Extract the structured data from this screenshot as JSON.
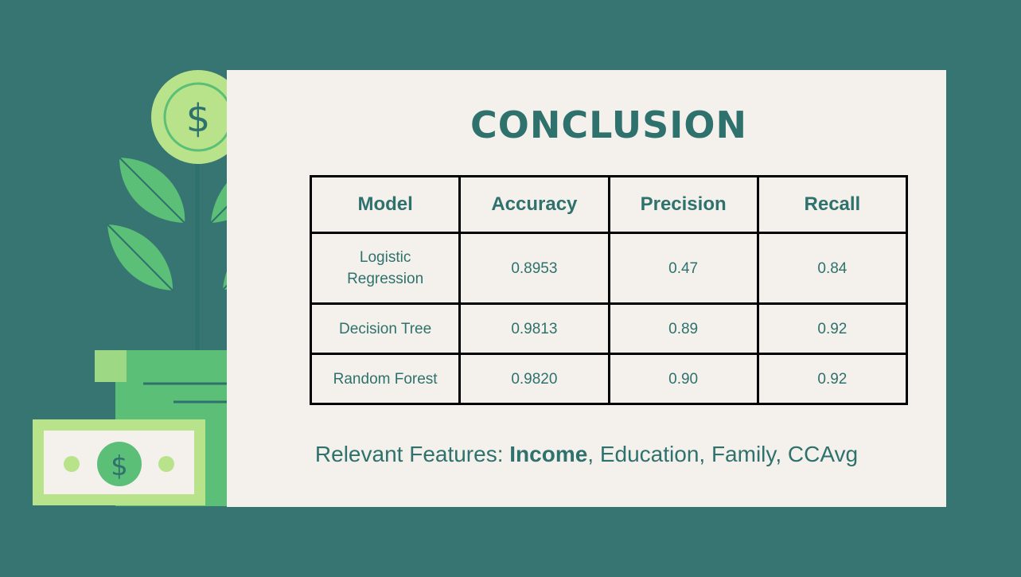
{
  "slide": {
    "title": "CONCLUSION"
  },
  "table": {
    "headers": [
      "Model",
      "Accuracy",
      "Precision",
      "Recall"
    ],
    "rows": [
      [
        "Logistic Regression",
        "0.8953",
        "0.47",
        "0.84"
      ],
      [
        "Decision Tree",
        "0.9813",
        "0.89",
        "0.92"
      ],
      [
        "Random Forest",
        "0.9820",
        "0.90",
        "0.92"
      ]
    ]
  },
  "features": {
    "prefix": "Relevant Features: ",
    "highlight": "Income",
    "rest": ", Education, Family, CCAvg"
  },
  "illustration": {
    "coin_symbol": "$",
    "bill_symbol": "$",
    "icons": [
      "dollar-coin-icon",
      "leaf-icon",
      "plant-pot-icon",
      "banknote-icon"
    ]
  },
  "colors": {
    "background": "#367572",
    "card": "#f4f1ec",
    "text": "#2f716c",
    "leaf": "#5bbf78",
    "light_green": "#b9e38a"
  }
}
